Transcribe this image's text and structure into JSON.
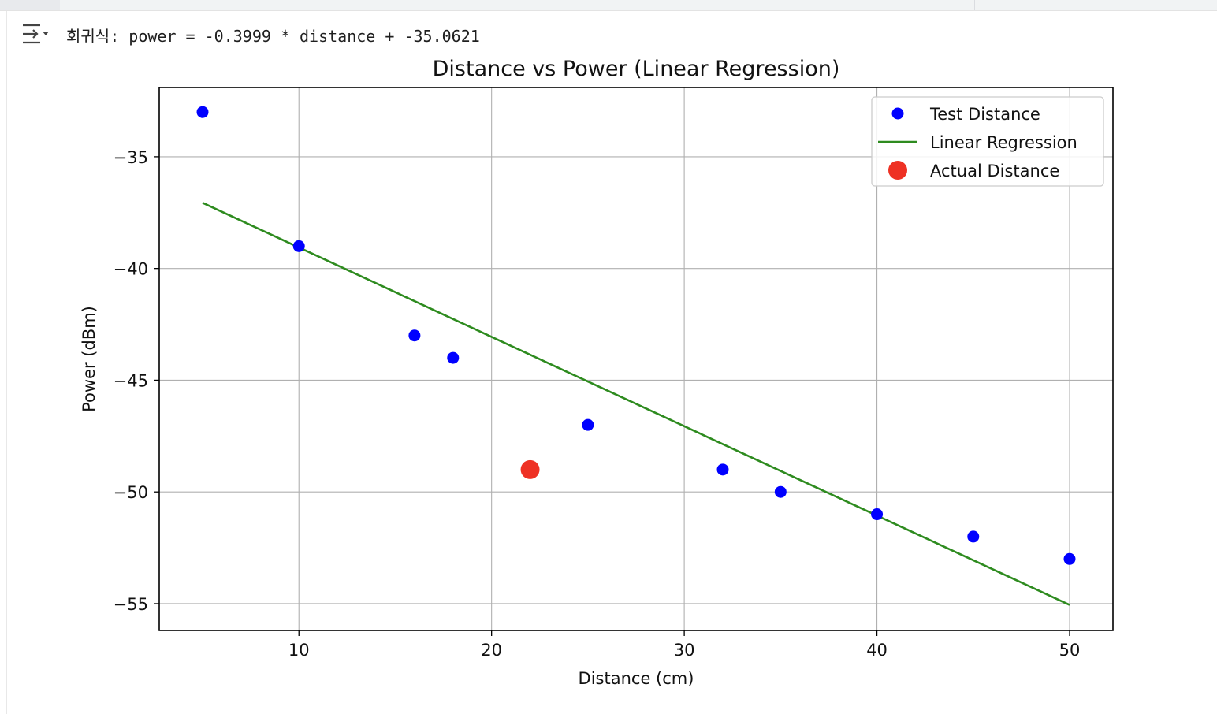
{
  "output": {
    "icon": "output-collapse-icon",
    "text": "회귀식: power = -0.3999 * distance + -35.0621"
  },
  "chart_data": {
    "type": "scatter",
    "title": "Distance vs Power (Linear Regression)",
    "xlabel": "Distance (cm)",
    "ylabel": "Power (dBm)",
    "xlim": [
      2.75,
      52.25
    ],
    "ylim": [
      -56.2,
      -31.9
    ],
    "xticks": [
      10,
      20,
      30,
      40,
      50
    ],
    "xtick_labels": [
      "10",
      "20",
      "30",
      "40",
      "50"
    ],
    "yticks": [
      -35,
      -40,
      -45,
      -50,
      -55
    ],
    "ytick_labels": [
      "−35",
      "−40",
      "−45",
      "−50",
      "−55"
    ],
    "grid": true,
    "legend_position": "top-right",
    "series": [
      {
        "name": "Test Distance",
        "kind": "scatter",
        "color": "#0000ff",
        "points": [
          [
            5,
            -33
          ],
          [
            10,
            -39
          ],
          [
            16,
            -43
          ],
          [
            18,
            -44
          ],
          [
            25,
            -47
          ],
          [
            32,
            -49
          ],
          [
            35,
            -50
          ],
          [
            40,
            -51
          ],
          [
            45,
            -52
          ],
          [
            50,
            -53
          ]
        ]
      },
      {
        "name": "Linear Regression",
        "kind": "line",
        "color": "#2e8b1f",
        "points": [
          [
            5,
            -37.0616
          ],
          [
            50,
            -55.0571
          ]
        ]
      },
      {
        "name": "Actual Distance",
        "kind": "scatter",
        "color": "#ee3124",
        "points": [
          [
            22,
            -49
          ]
        ]
      }
    ]
  }
}
